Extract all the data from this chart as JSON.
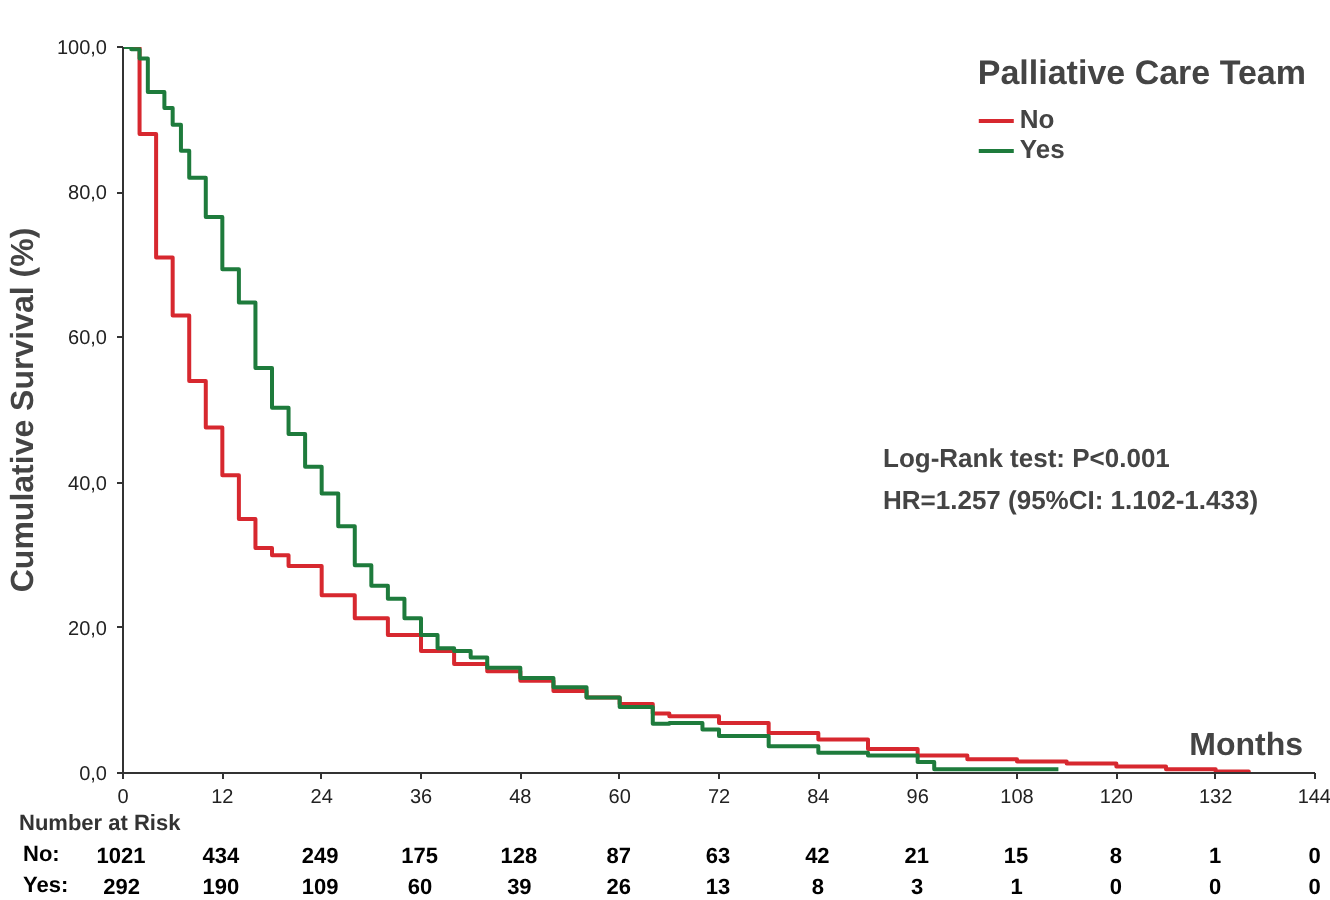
{
  "chart_data": {
    "type": "step",
    "ylabel": "Cumulative Survival (%)",
    "xlabel": "Months",
    "legend_title": "Palliative Care Team",
    "legend": "top right",
    "xlim": [
      0,
      144
    ],
    "ylim": [
      0,
      100
    ],
    "xticks": [
      0,
      12,
      24,
      36,
      48,
      60,
      72,
      84,
      96,
      108,
      120,
      132,
      144
    ],
    "yticks": [
      {
        "value": 0,
        "label": "0,0"
      },
      {
        "value": 20,
        "label": "20,0"
      },
      {
        "value": 40,
        "label": "40,0"
      },
      {
        "value": 60,
        "label": "60,0"
      },
      {
        "value": 80,
        "label": "80,0"
      },
      {
        "value": 100,
        "label": "100,0"
      }
    ],
    "grid": false,
    "series": [
      {
        "name": "No",
        "color": "#d7282f",
        "x": [
          0,
          2,
          4,
          6,
          8,
          10,
          12,
          14,
          16,
          18,
          20,
          24,
          28,
          32,
          36,
          40,
          44,
          48,
          52,
          56,
          60,
          64,
          66,
          72,
          78,
          84,
          90,
          96,
          102,
          108,
          114,
          120,
          126,
          132,
          136
        ],
        "values": [
          100,
          88,
          71,
          63,
          54,
          47.6,
          41,
          35,
          31,
          30,
          28.5,
          24.5,
          21.3,
          19,
          16.8,
          15,
          14,
          12.7,
          11.3,
          10.4,
          9.5,
          8.2,
          7.8,
          6.9,
          5.5,
          4.6,
          3.3,
          2.4,
          1.9,
          1.6,
          1.3,
          0.9,
          0.5,
          0.2,
          0
        ]
      },
      {
        "name": "Yes",
        "color": "#1e7b3c",
        "x": [
          0,
          1,
          2,
          3,
          5,
          6,
          7,
          8,
          10,
          12,
          14,
          16,
          18,
          20,
          22,
          24,
          26,
          28,
          30,
          32,
          34,
          36,
          38,
          40,
          42,
          44,
          48,
          52,
          56,
          60,
          64,
          66,
          70,
          72,
          78,
          84,
          90,
          96,
          98,
          113
        ],
        "values": [
          100,
          99.7,
          98.4,
          93.8,
          91.6,
          89.3,
          85.7,
          82,
          76.6,
          69.4,
          64.8,
          55.8,
          50.3,
          46.7,
          42.2,
          38.5,
          34,
          28.6,
          25.8,
          24,
          21.3,
          19,
          17.2,
          16.8,
          15.9,
          14.5,
          13.1,
          11.8,
          10.4,
          9.1,
          6.8,
          6.9,
          6,
          5.1,
          3.7,
          2.8,
          2.4,
          1.5,
          0.5,
          0.5
        ]
      }
    ],
    "annotations": [
      "Log-Rank test: P<0.001",
      "HR=1.257 (95%CI: 1.102-1.433)",
      "Number at Risk",
      "No: 1021 434 249 175 128 87 63 42 21 15 8 1 0",
      "Yes: 292 190 109 60 39 26 13 8 3 1 0 0 0"
    ]
  }
}
